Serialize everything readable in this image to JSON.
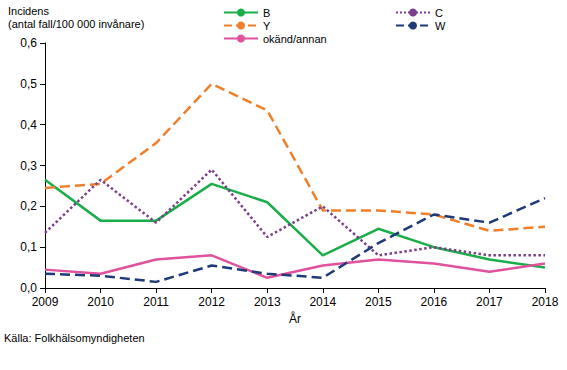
{
  "chart_data": {
    "type": "line",
    "y_label": [
      "Incidens",
      "(antal fall/100 000 invånare)"
    ],
    "x_label": "År",
    "source": "Källa: Folkhälsomyndigheten",
    "x": [
      2009,
      2010,
      2011,
      2012,
      2013,
      2014,
      2015,
      2016,
      2017,
      2018
    ],
    "xlim": [
      2009,
      2018
    ],
    "xticks": [
      2009,
      2010,
      2011,
      2012,
      2013,
      2014,
      2015,
      2016,
      2017,
      2018
    ],
    "ylim": [
      0,
      0.6
    ],
    "yticks": [
      {
        "value": 0,
        "label": "0,0"
      },
      {
        "value": 0.1,
        "label": "0,1"
      },
      {
        "value": 0.2,
        "label": "0,2"
      },
      {
        "value": 0.3,
        "label": "0,3"
      },
      {
        "value": 0.4,
        "label": "0,4"
      },
      {
        "value": 0.5,
        "label": "0,5"
      },
      {
        "value": 0.6,
        "label": "0,6"
      }
    ],
    "grid": false,
    "legend": "top",
    "series": [
      {
        "name": "B",
        "color": "#1aae4a",
        "line_style": "solid",
        "values": [
          0.265,
          0.165,
          0.165,
          0.255,
          0.21,
          0.08,
          0.145,
          0.1,
          0.07,
          0.05
        ]
      },
      {
        "name": "Y",
        "color": "#f07f2a",
        "line_style": "dashed",
        "values": [
          0.245,
          0.255,
          0.355,
          0.5,
          0.435,
          0.19,
          0.19,
          0.18,
          0.14,
          0.15
        ]
      },
      {
        "name": "okänd/annan",
        "color": "#e0529c",
        "line_style": "solid",
        "values": [
          0.045,
          0.035,
          0.07,
          0.08,
          0.025,
          0.055,
          0.07,
          0.06,
          0.04,
          0.06
        ]
      },
      {
        "name": "C",
        "color": "#7b3f8c",
        "line_style": "dotted",
        "values": [
          0.135,
          0.265,
          0.16,
          0.29,
          0.125,
          0.2,
          0.08,
          0.1,
          0.08,
          0.08
        ]
      },
      {
        "name": "W",
        "color": "#1f3a7a",
        "line_style": "dashed",
        "values": [
          0.035,
          0.03,
          0.015,
          0.055,
          0.035,
          0.025,
          0.11,
          0.18,
          0.16,
          0.22
        ]
      }
    ]
  }
}
